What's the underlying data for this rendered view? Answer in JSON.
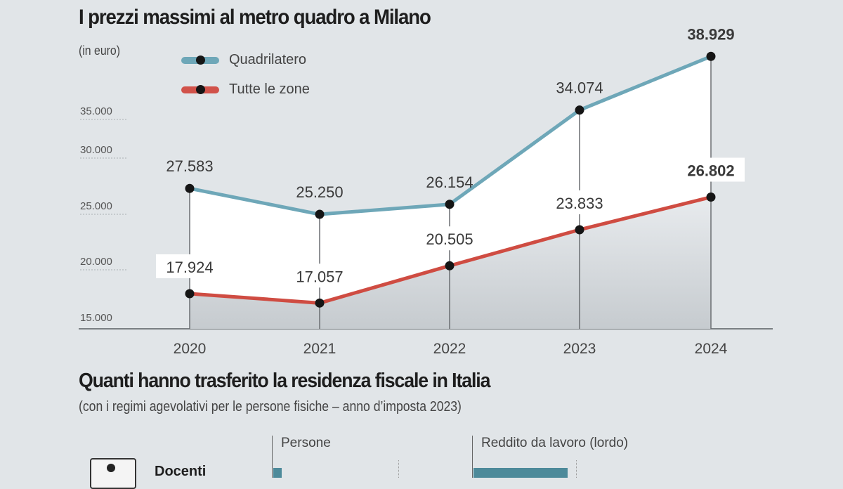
{
  "chart_data": {
    "type": "line",
    "title": "I prezzi massimi al metro quadro a Milano",
    "subtitle": "(in euro)",
    "xlabel": "",
    "ylabel": "",
    "categories": [
      "2020",
      "2021",
      "2022",
      "2023",
      "2024"
    ],
    "series": [
      {
        "name": "Quadrilatero",
        "color": "#5e9aab",
        "values": [
          27583,
          25250,
          26154,
          34074,
          38929
        ],
        "labels": [
          "27.583",
          "25.250",
          "26.154",
          "34.074",
          "38.929"
        ]
      },
      {
        "name": "Tutte le zone",
        "color": "#c9473d",
        "values": [
          17924,
          17057,
          20505,
          23833,
          26802
        ],
        "labels": [
          "17.924",
          "17.057",
          "20.505",
          "23.833",
          "26.802"
        ]
      }
    ],
    "yticks": [
      15000,
      20000,
      25000,
      30000,
      35000
    ],
    "ytick_labels": [
      "15.000",
      "20.000",
      "25.000",
      "30.000",
      "35.000"
    ],
    "ylim": [
      15000,
      40000
    ],
    "grid": false,
    "legend": "top-left",
    "fill_between": "white"
  },
  "section2": {
    "title": "Quanti hanno trasferito la residenza fiscale in Italia",
    "subtitle": "(con i regimi agevolativi per le persone fisiche – anno d’imposta 2023)",
    "columns": [
      "Persone",
      "Reddito da lavoro (lordo)"
    ],
    "rows": [
      {
        "label": "Docenti"
      }
    ]
  }
}
